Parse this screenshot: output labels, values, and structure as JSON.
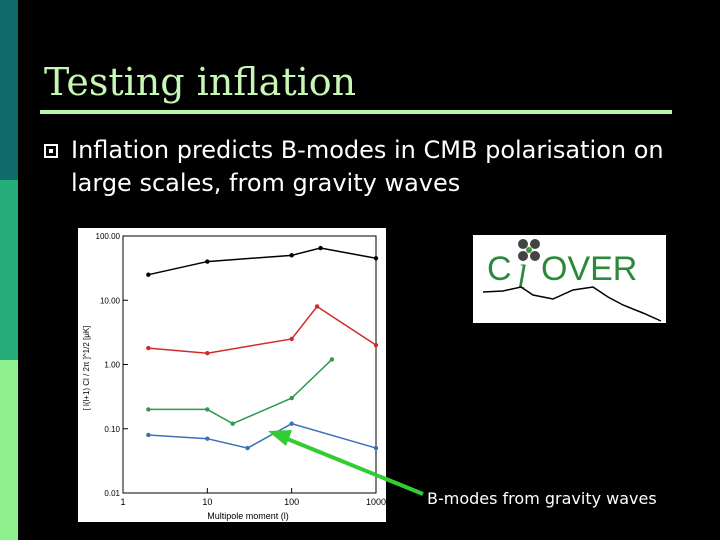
{
  "slide": {
    "title": "Testing inflation",
    "bullet": "Inflation predicts B-modes in CMB polarisation on large scales, from gravity waves",
    "caption": "B-modes from gravity waves"
  },
  "logo": {
    "text_c": "C",
    "text_l": "l",
    "text_over": "OVER"
  },
  "chart_data": {
    "type": "line",
    "xlabel": "Multipole moment (l)",
    "ylabel": "[ l(l+1) Cl / 2π ]^1/2 [μK]",
    "x_scale": "log",
    "y_scale": "log",
    "xlim": [
      1,
      1000
    ],
    "ylim": [
      0.01,
      100
    ],
    "x_ticks": [
      "1",
      "10",
      "100",
      "1000"
    ],
    "y_ticks": [
      "100.00",
      "10.00",
      "1.00",
      "0.10",
      "0.01"
    ],
    "series": [
      {
        "color": "#000000",
        "values": [
          [
            2,
            25
          ],
          [
            10,
            40
          ],
          [
            100,
            50
          ],
          [
            220,
            65
          ],
          [
            1000,
            45
          ]
        ]
      },
      {
        "color": "#d22a2a",
        "values": [
          [
            2,
            1.8
          ],
          [
            10,
            1.5
          ],
          [
            100,
            2.5
          ],
          [
            200,
            8
          ],
          [
            1000,
            2
          ]
        ]
      },
      {
        "color": "#2f9a4a",
        "values": [
          [
            2,
            0.2
          ],
          [
            10,
            0.2
          ],
          [
            20,
            0.12
          ],
          [
            100,
            0.3
          ],
          [
            300,
            1.2
          ]
        ]
      },
      {
        "color": "#3b6fb8",
        "values": [
          [
            2,
            0.08
          ],
          [
            10,
            0.07
          ],
          [
            30,
            0.05
          ],
          [
            100,
            0.12
          ],
          [
            1000,
            0.05
          ]
        ]
      }
    ],
    "legend": "none",
    "grid": false
  },
  "colors": {
    "accent": "#c6f7b4",
    "arrow": "#33cc33"
  }
}
